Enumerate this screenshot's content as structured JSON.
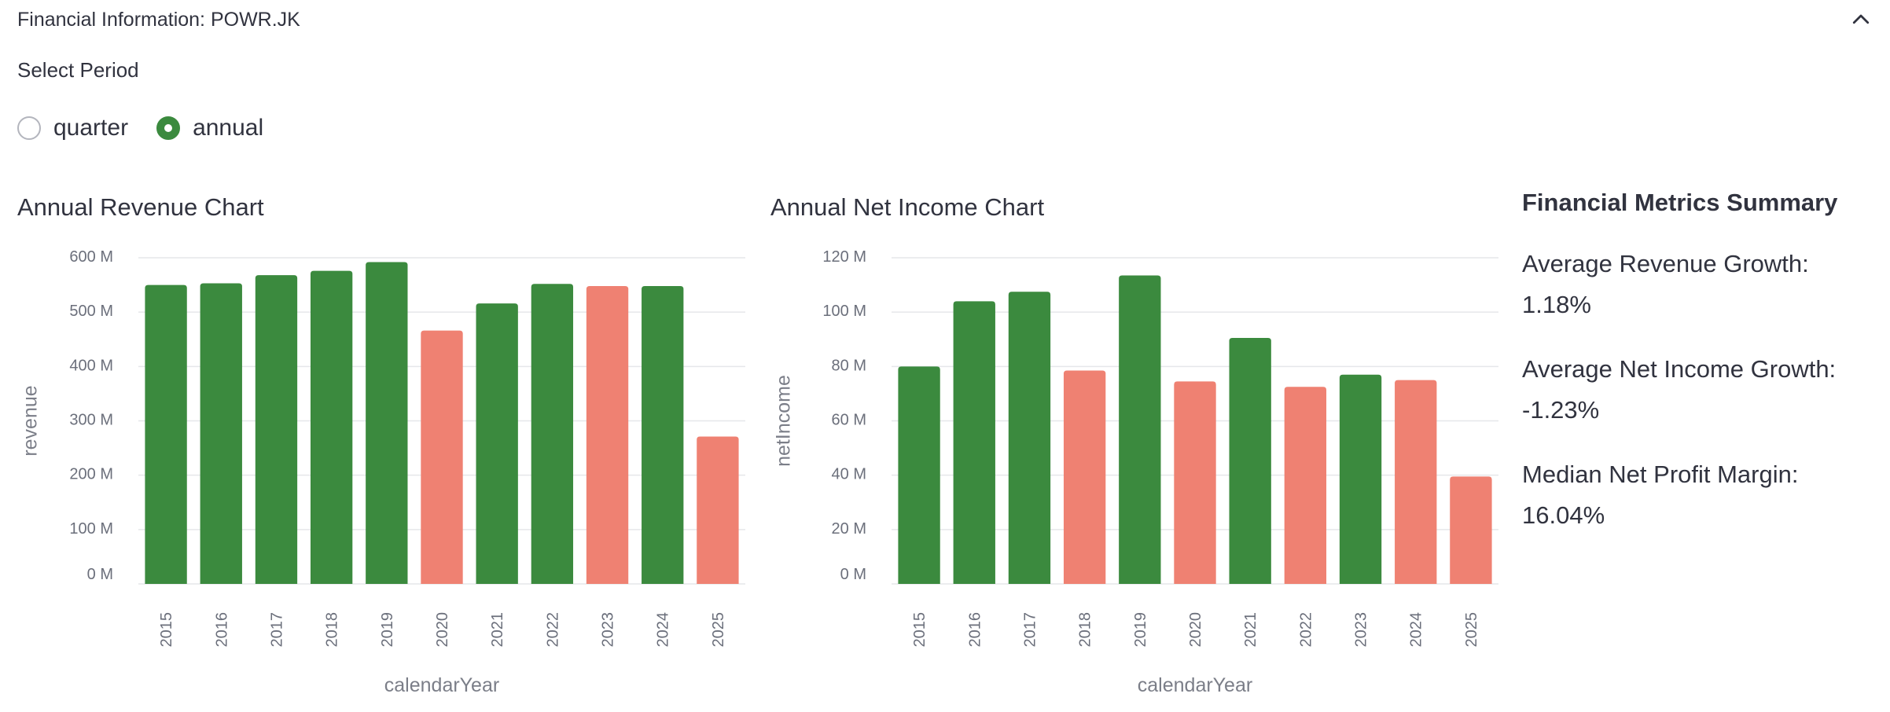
{
  "expander": {
    "title": "Financial Information: POWR.JK",
    "toggle_icon": "chevron-up-icon"
  },
  "period": {
    "label": "Select Period",
    "options": [
      "quarter",
      "annual"
    ],
    "selected": "annual"
  },
  "colors": {
    "growth": "#3b8a3e",
    "decline": "#ef8172"
  },
  "chart_data": [
    {
      "type": "bar",
      "title": "Annual Revenue Chart",
      "xlabel": "calendarYear",
      "ylabel": "revenue",
      "categories": [
        "2015",
        "2016",
        "2017",
        "2018",
        "2019",
        "2020",
        "2021",
        "2022",
        "2023",
        "2024",
        "2025"
      ],
      "values": [
        550,
        553,
        568,
        576,
        592,
        466,
        516,
        552,
        548,
        548,
        271
      ],
      "value_unit": "M",
      "bar_status": [
        "up",
        "up",
        "up",
        "up",
        "up",
        "down",
        "up",
        "up",
        "down",
        "up",
        "down"
      ],
      "yticks": [
        "0 M",
        "100 M",
        "200 M",
        "300 M",
        "400 M",
        "500 M",
        "600 M"
      ],
      "ylim": [
        0,
        600
      ],
      "grid": true
    },
    {
      "type": "bar",
      "title": "Annual Net Income Chart",
      "xlabel": "calendarYear",
      "ylabel": "netIncome",
      "categories": [
        "2015",
        "2016",
        "2017",
        "2018",
        "2019",
        "2020",
        "2021",
        "2022",
        "2023",
        "2024",
        "2025"
      ],
      "values": [
        80,
        104,
        107.5,
        78.5,
        113.5,
        74.5,
        90.5,
        72.5,
        77,
        75,
        39.5
      ],
      "value_unit": "M",
      "bar_status": [
        "up",
        "up",
        "up",
        "down",
        "up",
        "down",
        "up",
        "down",
        "up",
        "down",
        "down"
      ],
      "yticks": [
        "0 M",
        "20 M",
        "40 M",
        "60 M",
        "80 M",
        "100 M",
        "120 M"
      ],
      "ylim": [
        0,
        120
      ],
      "grid": true
    }
  ],
  "summary": {
    "title": "Financial Metrics Summary",
    "revenue_growth": "Average Revenue Growth: 1.18%",
    "net_income_growth": "Average Net Income Growth: -1.23%",
    "profit_margin": "Median Net Profit Margin: 16.04%"
  }
}
